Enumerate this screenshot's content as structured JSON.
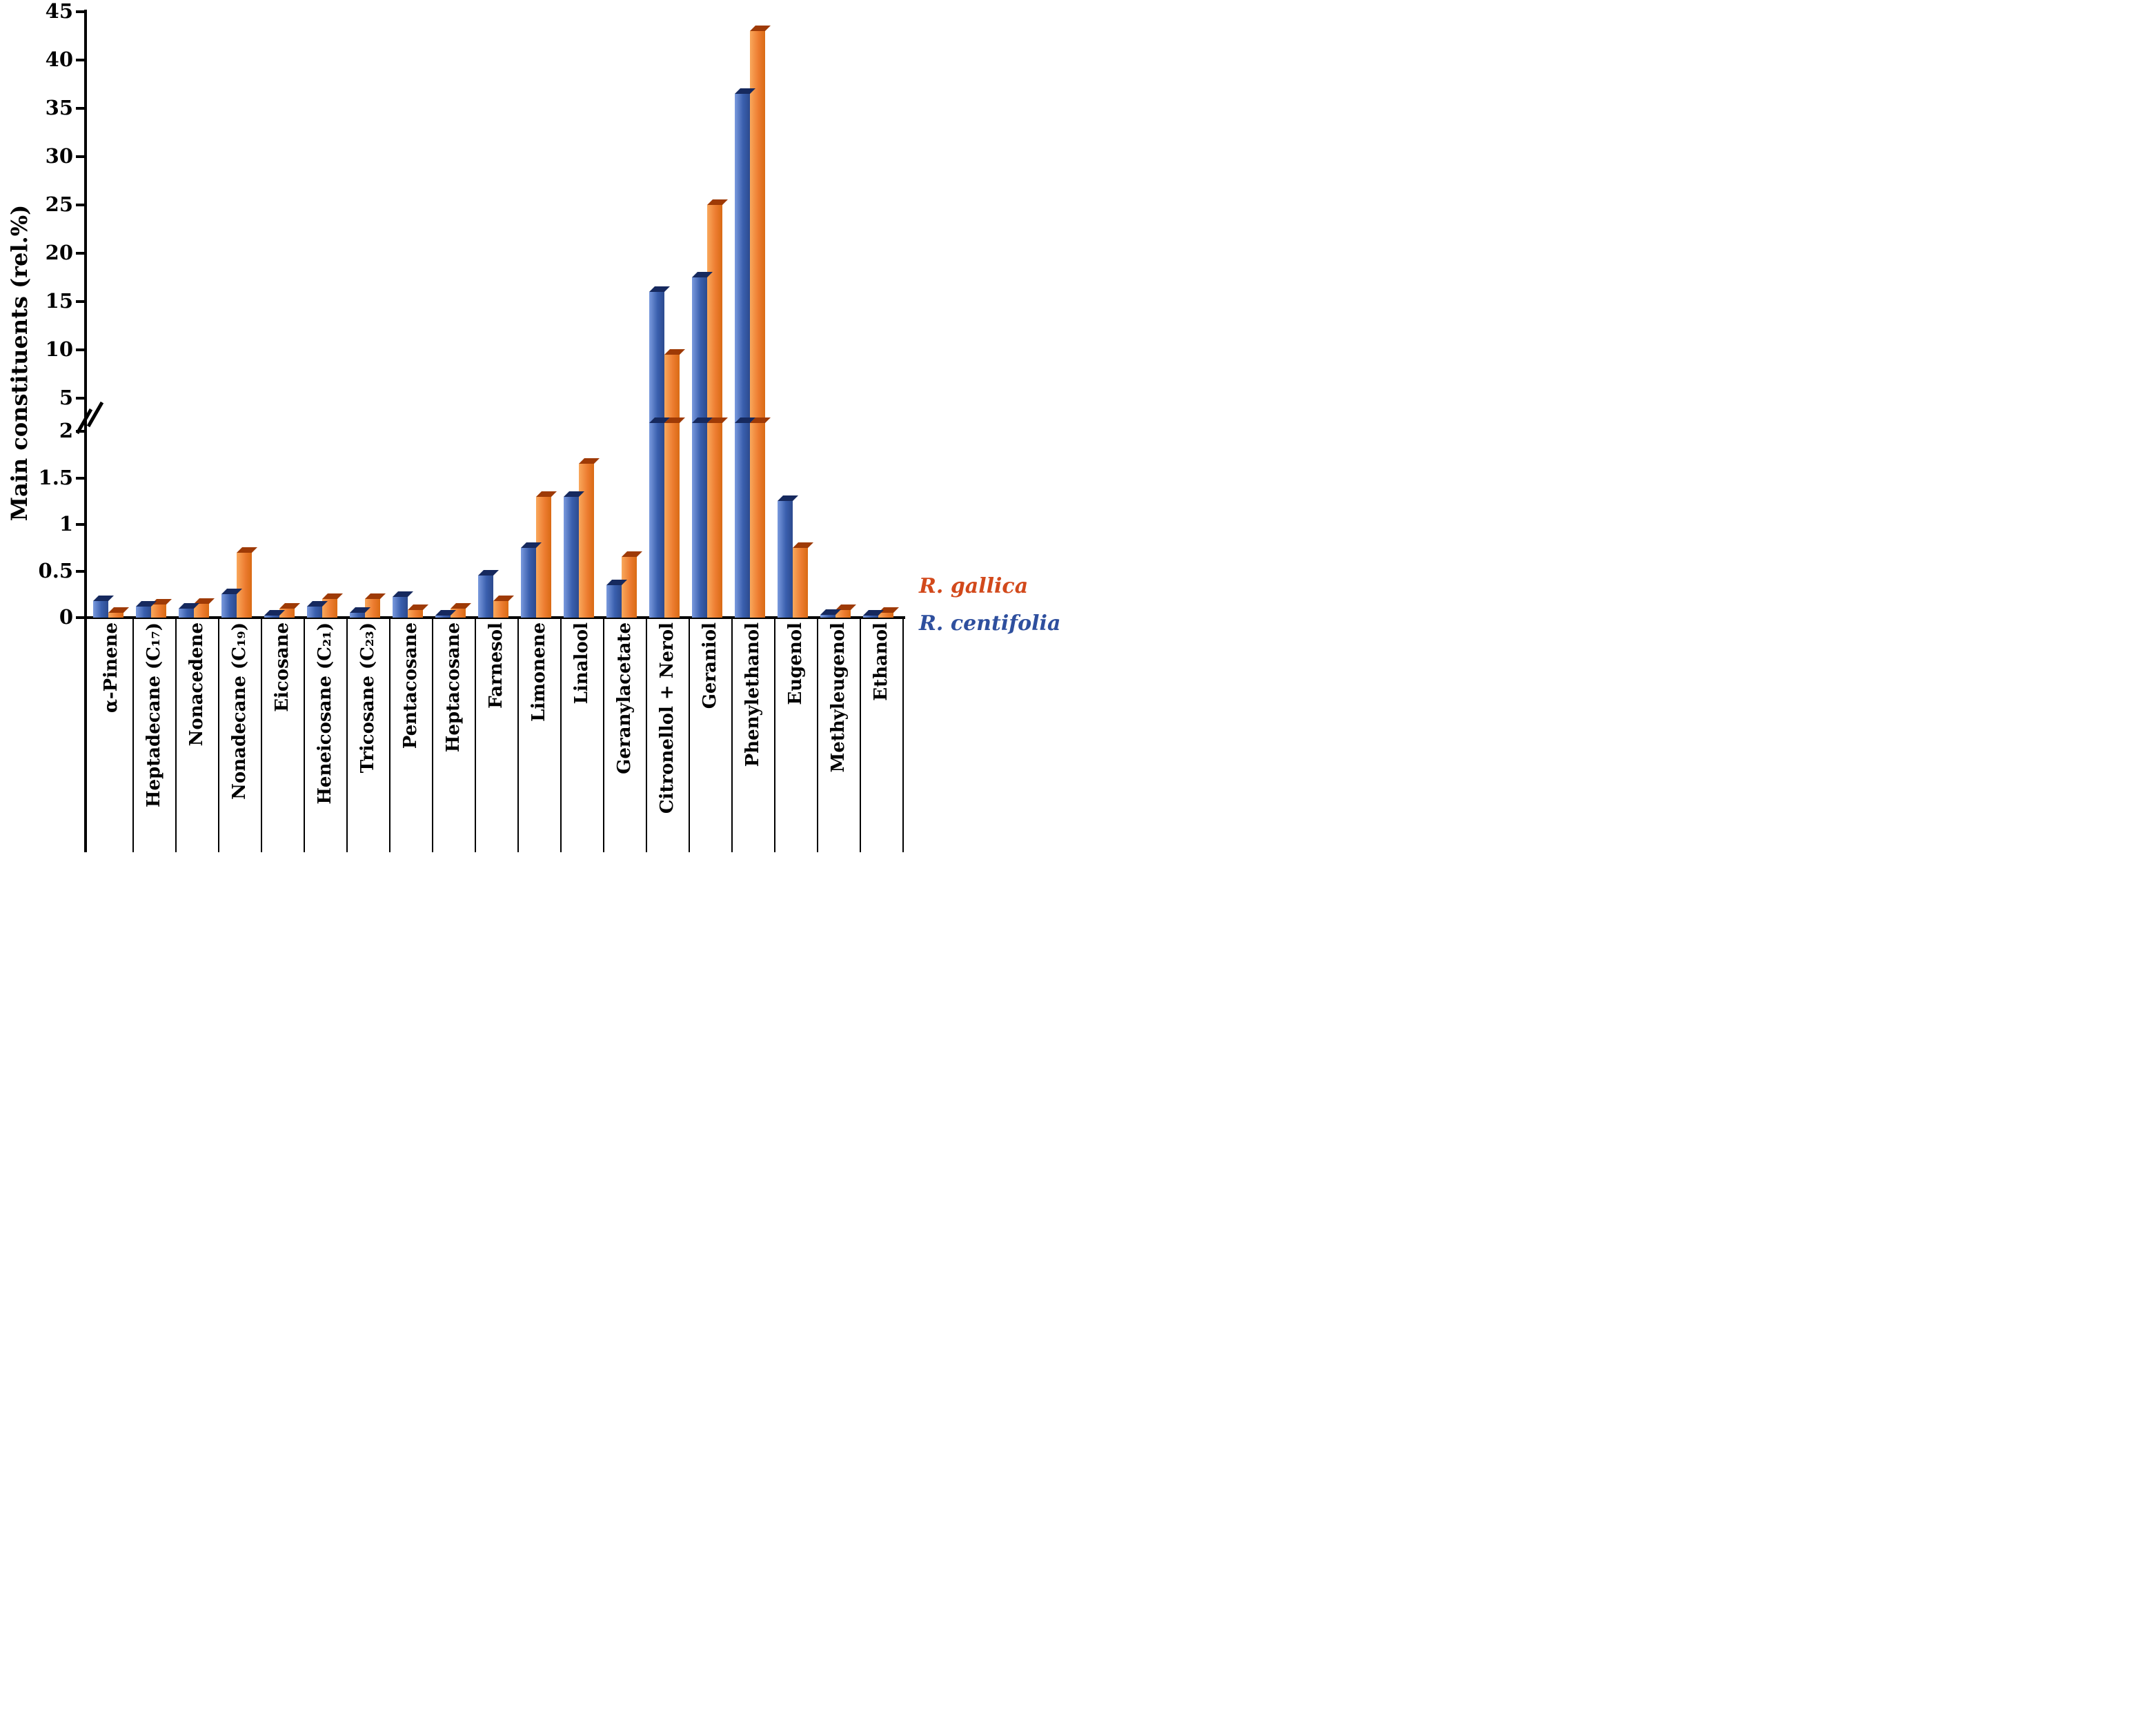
{
  "chart_data": {
    "type": "bar",
    "title": "",
    "ylabel": "Main constituents (rel.%)",
    "xlabel": "",
    "grid": false,
    "legend_position": "right-of-axis-near-baseline",
    "axis": {
      "broken": true,
      "lower_range": [
        0,
        2
      ],
      "upper_range": [
        5,
        45
      ],
      "lower_ticks": [
        0,
        0.5,
        1,
        1.5,
        2
      ],
      "upper_ticks": [
        5,
        10,
        15,
        20,
        25,
        30,
        35,
        40,
        45
      ]
    },
    "categories": [
      "α-Pinene",
      "Heptadecane (C₁₇)",
      "Nonacedene",
      "Nonadecane (C₁₉)",
      "Eicosane",
      "Heneicosane (C₂₁)",
      "Tricosane (C₂₃)",
      "Pentacosane",
      "Heptacosane",
      "Farnesol",
      "Limonene",
      "Linalool",
      "Geranylacetate",
      "Citronellol + Nerol",
      "Geraniol",
      "Phenylethanol",
      "Eugenol",
      "Methyleugenol",
      "Ethanol"
    ],
    "series": [
      {
        "name": "R. gallica",
        "color": "#ED7D31",
        "color_light": "#F9A85C",
        "color_dark": "#D96A14",
        "cap_color": "#9E3A06",
        "values": [
          0.05,
          0.14,
          0.15,
          0.7,
          0.1,
          0.2,
          0.2,
          0.08,
          0.1,
          0.18,
          1.3,
          1.65,
          0.65,
          9.5,
          25,
          43,
          0.75,
          0.08,
          0.05
        ]
      },
      {
        "name": "R. centifolia",
        "color": "#3A5FAE",
        "color_light": "#7A9ADE",
        "color_dark": "#2C4A8E",
        "cap_color": "#16295E",
        "values": [
          0.18,
          0.12,
          0.1,
          0.25,
          0.02,
          0.12,
          0.05,
          0.22,
          0.02,
          0.45,
          0.75,
          1.3,
          0.35,
          16,
          17.5,
          36.5,
          1.25,
          0.03,
          0.02
        ]
      }
    ],
    "legend": {
      "gallica": {
        "label": "R. gallica",
        "color": "#D2491B"
      },
      "centifolia": {
        "label": "R. centifolia",
        "color": "#2E4F9E"
      }
    }
  }
}
